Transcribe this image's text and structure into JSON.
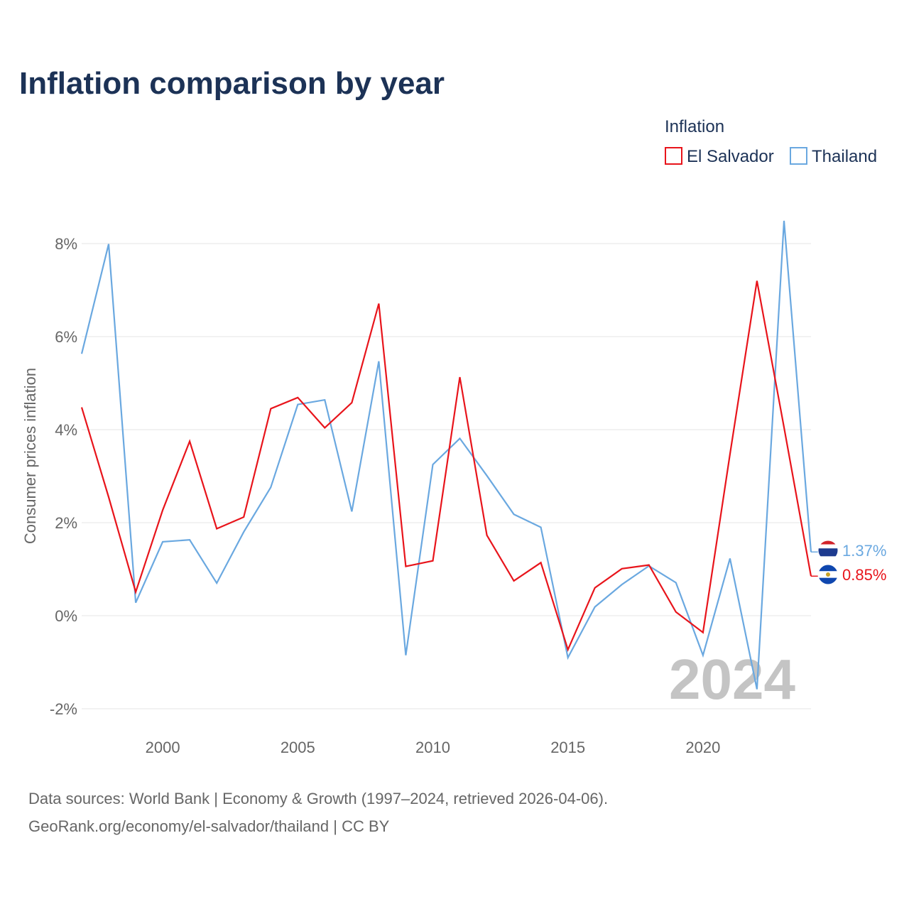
{
  "title": "Inflation comparison by year",
  "legend": {
    "title": "Inflation",
    "items": [
      {
        "label": "El Salvador",
        "color": "#e8141b"
      },
      {
        "label": "Thailand",
        "color": "#6aa8e0"
      }
    ]
  },
  "watermark_year": "2024",
  "source_line1": "Data sources: World Bank | Economy & Growth (1997–2024, retrieved 2026-04-06).",
  "source_line2": "GeoRank.org/economy/el-salvador/thailand | CC BY",
  "chart_data": {
    "type": "line",
    "title": "Inflation comparison by year",
    "xlabel": "",
    "ylabel": "Consumer prices inflation",
    "xlim": [
      1997,
      2024
    ],
    "ylim": [
      -2,
      9
    ],
    "y_ticks": [
      -2,
      0,
      2,
      4,
      6,
      8
    ],
    "y_tick_labels": [
      "-2%",
      "0%",
      "2%",
      "4%",
      "6%",
      "8%"
    ],
    "x_ticks": [
      2000,
      2005,
      2010,
      2015,
      2020
    ],
    "x_tick_labels": [
      "2000",
      "2005",
      "2010",
      "2015",
      "2020"
    ],
    "x": [
      1997,
      1998,
      1999,
      2000,
      2001,
      2002,
      2003,
      2004,
      2005,
      2006,
      2007,
      2008,
      2009,
      2010,
      2011,
      2012,
      2013,
      2014,
      2015,
      2016,
      2017,
      2018,
      2019,
      2020,
      2021,
      2022,
      2023,
      2024
    ],
    "series": [
      {
        "name": "El Salvador",
        "color": "#e8141b",
        "end_label": "0.85%",
        "values": [
          4.48,
          2.55,
          0.51,
          2.27,
          3.75,
          1.87,
          2.12,
          4.45,
          4.69,
          4.04,
          4.58,
          6.71,
          1.06,
          1.18,
          5.13,
          1.73,
          0.75,
          1.14,
          -0.73,
          0.6,
          1.01,
          1.09,
          0.08,
          -0.36,
          3.47,
          7.2,
          4.05,
          0.85
        ]
      },
      {
        "name": "Thailand",
        "color": "#6aa8e0",
        "end_label": "1.37%",
        "values": [
          5.63,
          7.99,
          0.28,
          1.59,
          1.63,
          0.7,
          1.8,
          2.76,
          4.54,
          4.64,
          2.24,
          5.47,
          -0.85,
          3.25,
          3.81,
          3.01,
          2.18,
          1.9,
          -0.9,
          0.19,
          0.67,
          1.07,
          0.71,
          -0.85,
          1.23,
          -1.58,
          8.49,
          1.37
        ]
      }
    ],
    "legend_position": "top-right"
  }
}
